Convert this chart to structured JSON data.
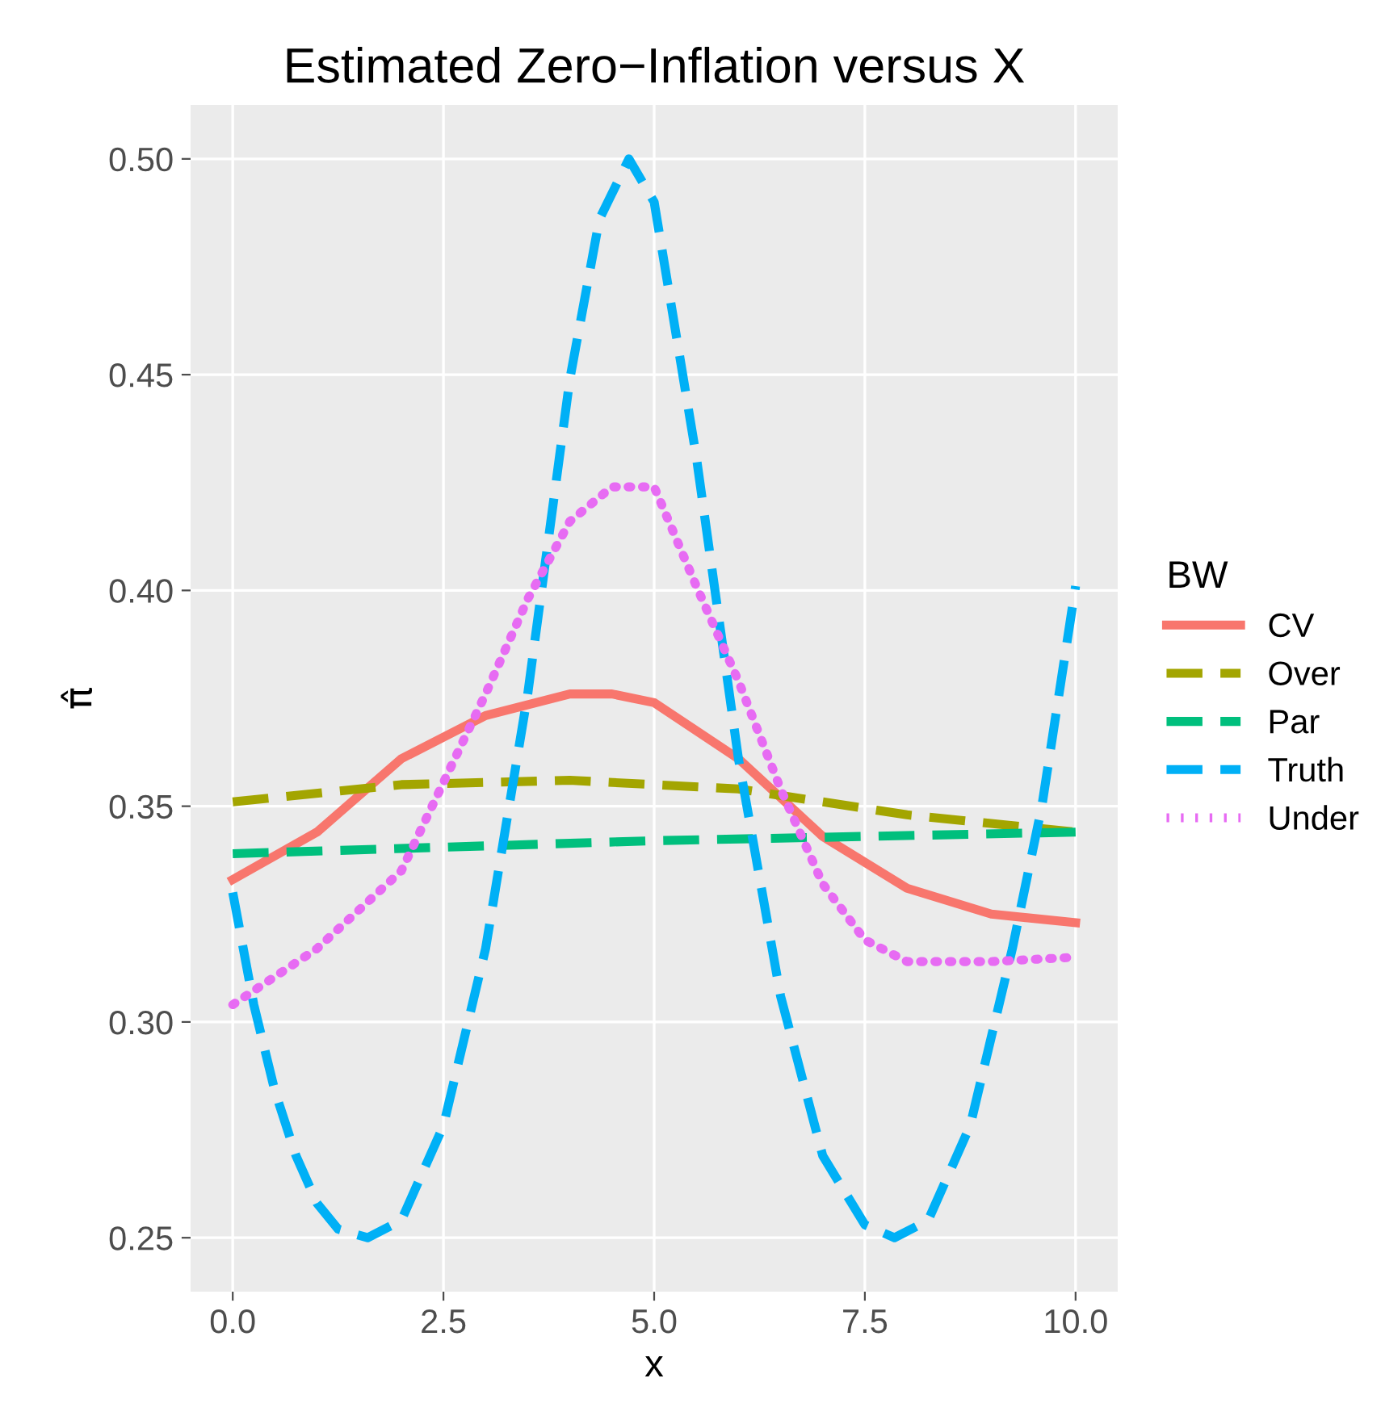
{
  "chart_data": {
    "type": "line",
    "title": "Estimated Zero−Inflation versus X",
    "xlabel": "x",
    "ylabel": "π̂",
    "legend_title": "BW",
    "legend": "right",
    "grid": true,
    "xlim": [
      -0.5,
      10.5
    ],
    "ylim": [
      0.2375,
      0.5125
    ],
    "xticks": [
      {
        "value": 0,
        "label": "0.0"
      },
      {
        "value": 2.5,
        "label": "2.5"
      },
      {
        "value": 5,
        "label": "5.0"
      },
      {
        "value": 7.5,
        "label": "7.5"
      },
      {
        "value": 10,
        "label": "10.0"
      }
    ],
    "yticks": [
      0.25,
      {
        "value": 0.3,
        "label": "0.30"
      },
      0.35,
      {
        "value": 0.4,
        "label": "0.40"
      },
      0.45,
      {
        "value": 0.5,
        "label": "0.50"
      }
    ],
    "series": [
      {
        "name": "CV",
        "color": "#f8766d",
        "line_style": "solid",
        "x": [
          0,
          1,
          2,
          3,
          4,
          4.5,
          5,
          6,
          7,
          8,
          9,
          10
        ],
        "values": [
          0.333,
          0.344,
          0.361,
          0.371,
          0.376,
          0.376,
          0.374,
          0.361,
          0.343,
          0.331,
          0.325,
          0.323
        ]
      },
      {
        "name": "Over",
        "color": "#a3a500",
        "line_style": "dashed",
        "x": [
          0,
          2,
          4,
          6,
          8,
          10
        ],
        "values": [
          0.351,
          0.355,
          0.356,
          0.354,
          0.348,
          0.344
        ]
      },
      {
        "name": "Par",
        "color": "#00bf7d",
        "line_style": "dashed",
        "x": [
          0,
          5,
          10
        ],
        "values": [
          0.339,
          0.342,
          0.344
        ]
      },
      {
        "name": "Truth",
        "color": "#00b0f6",
        "line_style": "dashed",
        "x": [
          0,
          0.25,
          0.5,
          0.75,
          1,
          1.25,
          1.6,
          2,
          2.5,
          3,
          3.5,
          4,
          4.35,
          4.7,
          5,
          5.5,
          6,
          6.5,
          7,
          7.5,
          7.85,
          8.25,
          8.75,
          9.25,
          9.6,
          10
        ],
        "values": [
          0.33,
          0.304,
          0.284,
          0.269,
          0.258,
          0.252,
          0.25,
          0.254,
          0.276,
          0.317,
          0.376,
          0.449,
          0.486,
          0.5,
          0.49,
          0.431,
          0.361,
          0.306,
          0.269,
          0.253,
          0.25,
          0.254,
          0.276,
          0.317,
          0.35,
          0.401
        ]
      },
      {
        "name": "Under",
        "color": "#e76bf3",
        "line_style": "dotted",
        "x": [
          0,
          1,
          2,
          3,
          3.5,
          4,
          4.5,
          5,
          5.5,
          6,
          6.5,
          7,
          7.5,
          8,
          9,
          10
        ],
        "values": [
          0.304,
          0.317,
          0.335,
          0.376,
          0.398,
          0.416,
          0.424,
          0.424,
          0.401,
          0.379,
          0.354,
          0.332,
          0.319,
          0.314,
          0.314,
          0.315
        ]
      }
    ]
  }
}
